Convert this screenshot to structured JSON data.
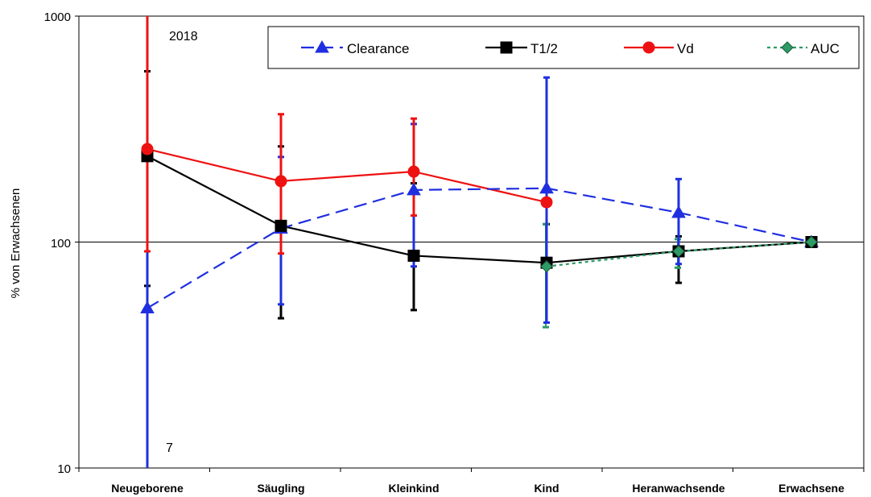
{
  "chart_data": {
    "type": "line",
    "title": "",
    "ylabel": "% von Erwachsenen",
    "xlabel": "",
    "yscale": "log",
    "ylim": [
      10,
      1000
    ],
    "yticks": [
      "10",
      "100",
      "1000"
    ],
    "categories": [
      "Neugeborene",
      "Säugling",
      "Kleinkind",
      "Kind",
      "Heranwachsende",
      "Erwachsene"
    ],
    "legend_position": "top-right",
    "series": [
      {
        "name": "Clearance",
        "color": "#1f2fe0",
        "marker": "triangle",
        "dash": "dashed",
        "values": [
          51,
          115,
          170,
          173,
          135,
          100
        ],
        "err_low": [
          7,
          53,
          78,
          44,
          80,
          null
        ],
        "err_high": [
          1000,
          238,
          333,
          535,
          190,
          null
        ]
      },
      {
        "name": "T1/2",
        "color": "#000000",
        "marker": "square",
        "dash": "solid",
        "values": [
          240,
          118,
          87,
          81,
          91,
          100
        ],
        "err_low": [
          64,
          46,
          50,
          44,
          66,
          null
        ],
        "err_high": [
          570,
          265,
          182,
          120,
          106,
          null
        ]
      },
      {
        "name": "Vd",
        "color": "#ee1111",
        "marker": "circle",
        "dash": "solid",
        "values": [
          258,
          186,
          205,
          null,
          null,
          null
        ],
        "values_full": [
          258,
          186,
          205,
          150,
          null,
          null
        ],
        "err_low": [
          91,
          89,
          131,
          null,
          null,
          null
        ],
        "err_high": [
          1000,
          368,
          352,
          250,
          null,
          null
        ]
      },
      {
        "name": "AUC",
        "color": "#2e9a66",
        "marker": "diamond",
        "dash": "dotted",
        "values": [
          null,
          null,
          null,
          78,
          91,
          100
        ],
        "err_low": [
          null,
          null,
          null,
          42,
          77,
          null
        ],
        "err_high": [
          null,
          null,
          null,
          120,
          103,
          null
        ]
      }
    ],
    "annotations": [
      "2018",
      "7"
    ]
  }
}
